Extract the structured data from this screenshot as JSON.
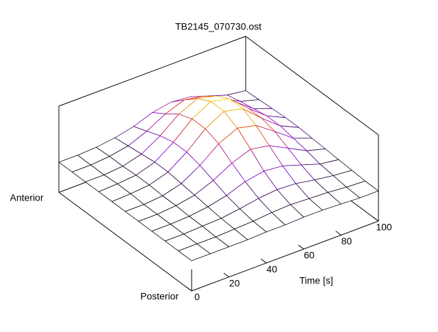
{
  "chart_data": {
    "type": "surface",
    "title": "TB2145_070730.ost",
    "xlabel": "Time [s]",
    "x": [
      0,
      10,
      20,
      30,
      40,
      50,
      60,
      70,
      80,
      90,
      100
    ],
    "categories": [
      "Posterior",
      null,
      null,
      null,
      null,
      null,
      null,
      null,
      null,
      null,
      "Anterior"
    ],
    "z": [
      [
        0.35,
        0.35,
        0.35,
        0.35,
        0.36,
        0.36,
        0.37,
        0.37,
        0.36,
        0.35,
        0.35
      ],
      [
        0.35,
        0.35,
        0.35,
        0.36,
        0.37,
        0.39,
        0.4,
        0.39,
        0.38,
        0.36,
        0.35
      ],
      [
        0.35,
        0.35,
        0.36,
        0.37,
        0.4,
        0.44,
        0.46,
        0.45,
        0.41,
        0.38,
        0.36
      ],
      [
        0.35,
        0.35,
        0.36,
        0.39,
        0.44,
        0.52,
        0.56,
        0.54,
        0.47,
        0.4,
        0.37
      ],
      [
        0.35,
        0.35,
        0.37,
        0.41,
        0.5,
        0.62,
        0.7,
        0.66,
        0.55,
        0.44,
        0.38
      ],
      [
        0.35,
        0.35,
        0.37,
        0.43,
        0.56,
        0.73,
        0.83,
        0.78,
        0.63,
        0.47,
        0.39
      ],
      [
        0.35,
        0.36,
        0.38,
        0.45,
        0.6,
        0.79,
        0.91,
        0.86,
        0.67,
        0.5,
        0.4
      ],
      [
        0.35,
        0.36,
        0.38,
        0.45,
        0.6,
        0.79,
        0.91,
        0.86,
        0.67,
        0.5,
        0.4
      ],
      [
        0.35,
        0.35,
        0.37,
        0.43,
        0.56,
        0.73,
        0.83,
        0.78,
        0.63,
        0.47,
        0.39
      ],
      [
        0.35,
        0.35,
        0.37,
        0.41,
        0.5,
        0.62,
        0.7,
        0.66,
        0.55,
        0.44,
        0.38
      ],
      [
        0.35,
        0.35,
        0.36,
        0.39,
        0.44,
        0.52,
        0.56,
        0.54,
        0.47,
        0.4,
        0.37
      ]
    ],
    "xlim": [
      0,
      100
    ],
    "xticks": [
      0,
      20,
      40,
      60,
      80,
      100
    ],
    "zlim": [
      0,
      1
    ],
    "palette": [
      "#000000",
      "#8a00e6",
      "#d83000",
      "#ffee00"
    ]
  }
}
